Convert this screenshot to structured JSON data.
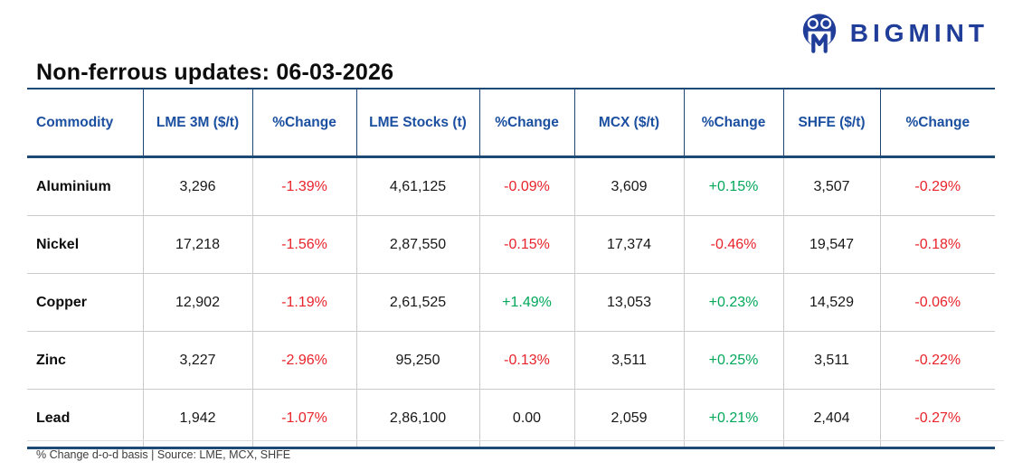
{
  "brand": {
    "name": "BIGMINT"
  },
  "colors": {
    "navy_rule": "#1c4a74",
    "header_text": "#1b4fa0",
    "brand_blue": "#1f3d99",
    "up": "#00a859",
    "down": "#e8232b"
  },
  "chart_data": {
    "type": "table",
    "title": "Non-ferrous updates: 06-03-2026",
    "columns": [
      "Commodity",
      "LME 3M ($/t)",
      "%Change",
      "LME Stocks (t)",
      "%Change",
      "MCX ($/t)",
      "%Change",
      "SHFE ($/t)",
      "%Change"
    ],
    "rows": [
      {
        "commodity": "Aluminium",
        "cells": [
          {
            "v": "3,296"
          },
          {
            "v": "-1.39%",
            "c": "down"
          },
          {
            "v": "4,61,125"
          },
          {
            "v": "-0.09%",
            "c": "down"
          },
          {
            "v": "3,609"
          },
          {
            "v": "+0.15%",
            "c": "up"
          },
          {
            "v": "3,507"
          },
          {
            "v": "-0.29%",
            "c": "down"
          }
        ]
      },
      {
        "commodity": "Nickel",
        "cells": [
          {
            "v": "17,218"
          },
          {
            "v": "-1.56%",
            "c": "down"
          },
          {
            "v": "2,87,550"
          },
          {
            "v": "-0.15%",
            "c": "down"
          },
          {
            "v": "17,374"
          },
          {
            "v": "-0.46%",
            "c": "down"
          },
          {
            "v": "19,547"
          },
          {
            "v": "-0.18%",
            "c": "down"
          }
        ]
      },
      {
        "commodity": "Copper",
        "cells": [
          {
            "v": "12,902"
          },
          {
            "v": "-1.19%",
            "c": "down"
          },
          {
            "v": "2,61,525"
          },
          {
            "v": "+1.49%",
            "c": "up"
          },
          {
            "v": "13,053"
          },
          {
            "v": "+0.23%",
            "c": "up"
          },
          {
            "v": "14,529"
          },
          {
            "v": "-0.06%",
            "c": "down"
          }
        ]
      },
      {
        "commodity": "Zinc",
        "cells": [
          {
            "v": "3,227"
          },
          {
            "v": "-2.96%",
            "c": "down"
          },
          {
            "v": "95,250"
          },
          {
            "v": "-0.13%",
            "c": "down"
          },
          {
            "v": "3,511"
          },
          {
            "v": "+0.25%",
            "c": "up"
          },
          {
            "v": "3,511"
          },
          {
            "v": "-0.22%",
            "c": "down"
          }
        ]
      },
      {
        "commodity": "Lead",
        "cells": [
          {
            "v": "1,942"
          },
          {
            "v": "-1.07%",
            "c": "down"
          },
          {
            "v": "2,86,100"
          },
          {
            "v": "0.00"
          },
          {
            "v": "2,059"
          },
          {
            "v": "+0.21%",
            "c": "up"
          },
          {
            "v": "2,404"
          },
          {
            "v": "-0.27%",
            "c": "down"
          }
        ]
      }
    ],
    "footnote": "% Change d-o-d basis | Source: LME, MCX, SHFE"
  }
}
